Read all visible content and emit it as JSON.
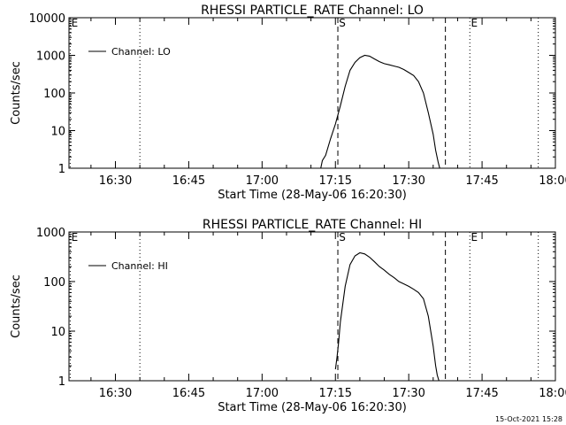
{
  "footer_text": "15-Oct-2021 15:28",
  "chart_data": [
    {
      "type": "line",
      "title": "RHESSI PARTICLE_RATE Channel: LO",
      "xlabel": "Start Time (28-May-06 16:20:30)",
      "ylabel": "Counts/sec",
      "y_scale": "log",
      "ylim": [
        1,
        10000
      ],
      "y_tick_labels": [
        "1",
        "10",
        "100",
        "1000",
        "10000"
      ],
      "y_tick_values": [
        1,
        10,
        100,
        1000,
        10000
      ],
      "xlim": [
        "16:20:30",
        "18:00:00"
      ],
      "x_tick_labels": [
        "16:30",
        "16:45",
        "17:00",
        "17:15",
        "17:30",
        "17:45",
        "18:00"
      ],
      "legend": {
        "label": "Channel: LO",
        "placement": "top-left"
      },
      "markers": [
        {
          "label": "S",
          "time": "17:15:30",
          "style": "dashed"
        },
        {
          "label": "",
          "time": "17:37:30",
          "style": "dashed"
        },
        {
          "label": "E",
          "time": "17:42:30",
          "style": "dotted"
        },
        {
          "label": "",
          "time": "16:35:00",
          "style": "dotted"
        },
        {
          "label": "",
          "time": "17:56:30",
          "style": "dotted"
        },
        {
          "label": "E",
          "time": "16:20:45",
          "style": "dotted"
        }
      ],
      "series": [
        {
          "name": "Channel: LO",
          "x": [
            "17:12:00",
            "17:12:20",
            "17:13:00",
            "17:14:00",
            "17:15:00",
            "17:16:00",
            "17:17:00",
            "17:18:00",
            "17:19:00",
            "17:20:00",
            "17:21:00",
            "17:22:00",
            "17:23:00",
            "17:24:00",
            "17:25:00",
            "17:26:00",
            "17:27:00",
            "17:28:00",
            "17:29:00",
            "17:30:00",
            "17:31:00",
            "17:32:00",
            "17:33:00",
            "17:34:00",
            "17:35:00",
            "17:35:30",
            "17:36:00",
            "17:36:20"
          ],
          "values": [
            1,
            1.6,
            2.2,
            6,
            15,
            45,
            150,
            400,
            650,
            870,
            1000,
            950,
            800,
            680,
            600,
            560,
            520,
            480,
            420,
            350,
            290,
            200,
            100,
            30,
            8,
            3,
            1.5,
            1
          ]
        }
      ]
    },
    {
      "type": "line",
      "title": "RHESSI PARTICLE_RATE Channel: HI",
      "xlabel": "Start Time (28-May-06 16:20:30)",
      "ylabel": "Counts/sec",
      "y_scale": "log",
      "ylim": [
        1,
        1000
      ],
      "y_tick_labels": [
        "1",
        "10",
        "100",
        "1000"
      ],
      "y_tick_values": [
        1,
        10,
        100,
        1000
      ],
      "xlim": [
        "16:20:30",
        "18:00:00"
      ],
      "x_tick_labels": [
        "16:30",
        "16:45",
        "17:00",
        "17:15",
        "17:30",
        "17:45",
        "18:00"
      ],
      "legend": {
        "label": "Channel: HI",
        "placement": "top-left"
      },
      "markers": [
        {
          "label": "S",
          "time": "17:15:30",
          "style": "dashed"
        },
        {
          "label": "",
          "time": "17:37:30",
          "style": "dashed"
        },
        {
          "label": "E",
          "time": "17:42:30",
          "style": "dotted"
        },
        {
          "label": "",
          "time": "16:35:00",
          "style": "dotted"
        },
        {
          "label": "",
          "time": "17:56:30",
          "style": "dotted"
        },
        {
          "label": "E",
          "time": "16:20:45",
          "style": "dotted"
        }
      ],
      "series": [
        {
          "name": "Channel: HI",
          "x": [
            "17:15:00",
            "17:15:20",
            "17:15:40",
            "17:16:00",
            "17:17:00",
            "17:18:00",
            "17:19:00",
            "17:20:00",
            "17:21:00",
            "17:22:00",
            "17:23:00",
            "17:24:00",
            "17:25:00",
            "17:26:00",
            "17:27:00",
            "17:28:00",
            "17:29:00",
            "17:30:00",
            "17:31:00",
            "17:32:00",
            "17:33:00",
            "17:34:00",
            "17:35:00",
            "17:35:30",
            "17:35:50",
            "17:36:10"
          ],
          "values": [
            1.7,
            3,
            6,
            15,
            80,
            220,
            330,
            380,
            360,
            310,
            250,
            200,
            170,
            140,
            120,
            100,
            90,
            80,
            70,
            60,
            45,
            20,
            5,
            2,
            1.3,
            1
          ]
        }
      ]
    }
  ]
}
